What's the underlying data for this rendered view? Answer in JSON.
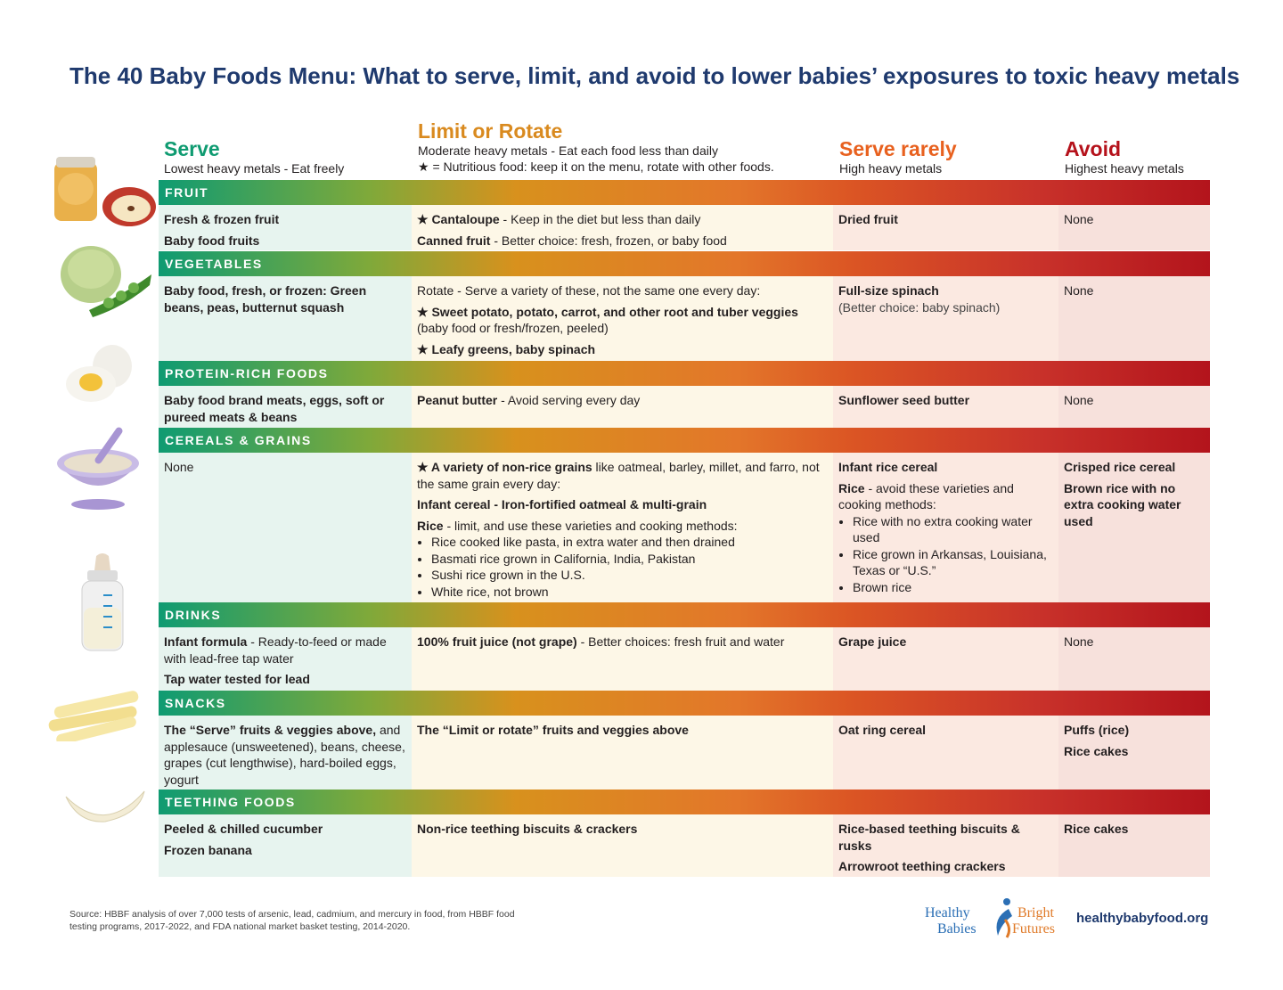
{
  "title": "The 40 Baby Foods Menu: What to serve, limit, and avoid to lower babies’ exposures to toxic heavy metals",
  "columns": {
    "serve": {
      "heading": "Serve",
      "sub": "Lowest heavy metals - Eat freely"
    },
    "limit": {
      "heading": "Limit or Rotate",
      "sub1": "Moderate heavy metals - Eat each food less than daily",
      "sub2": "★ = Nutritious food: keep it on the menu, rotate with other foods."
    },
    "rarely": {
      "heading": "Serve rarely",
      "sub": "High heavy metals"
    },
    "avoid": {
      "heading": "Avoid",
      "sub": "Highest heavy metals"
    }
  },
  "sections": {
    "fruit": {
      "label": "FRUIT",
      "serve": [
        "Fresh & frozen fruit",
        "Baby food fruits"
      ],
      "limit": [
        {
          "b": "★ Cantaloupe",
          "t": " - Keep in the diet but less than daily"
        },
        {
          "b": "Canned fruit",
          "t": " - Better choice: fresh, frozen, or baby food"
        }
      ],
      "rarely": [
        "Dried fruit"
      ],
      "avoid": [
        "None"
      ]
    },
    "vegetables": {
      "label": "VEGETABLES",
      "serve": [
        "Baby food, fresh, or frozen: Green beans, peas, butternut squash"
      ],
      "limit_intro": "Rotate - Serve a variety of these, not the same one every day:",
      "limit": [
        {
          "b": "★ Sweet potato, potato, carrot, and other root and tuber veggies",
          "t": " (baby food or fresh/frozen, peeled)"
        },
        {
          "b": "★ Leafy greens, baby spinach",
          "t": ""
        }
      ],
      "rarely_b": "Full-size spinach",
      "rarely_t": "(Better choice: baby spinach)",
      "avoid": [
        "None"
      ]
    },
    "protein": {
      "label": "PROTEIN-RICH FOODS",
      "serve": [
        "Baby food brand meats, eggs, soft or pureed meats & beans"
      ],
      "limit": [
        {
          "b": "Peanut butter",
          "t": " - Avoid serving every day"
        }
      ],
      "rarely": [
        "Sunflower seed butter"
      ],
      "avoid": [
        "None"
      ]
    },
    "cereals": {
      "label": "CEREALS & GRAINS",
      "serve": [
        "None"
      ],
      "limit_1b": "★ A variety of non-rice grains",
      "limit_1t": " like oatmeal, barley, millet, and farro, not the same grain every day:",
      "limit_2b": "Infant cereal - Iron-fortified oatmeal & multi-grain",
      "limit_3b": "Rice",
      "limit_3t": " - limit, and use these varieties and cooking methods:",
      "limit_list": [
        "Rice cooked like pasta, in extra water and then drained",
        "Basmati rice grown in California, India, Pakistan",
        "Sushi rice grown in the U.S.",
        "White rice, not brown"
      ],
      "rarely_1": "Infant rice cereal",
      "rarely_2b": "Rice",
      "rarely_2t": " - avoid these varieties and cooking methods:",
      "rarely_list": [
        "Rice with no extra cooking water used",
        "Rice grown in Arkansas, Louisiana, Texas or “U.S.”",
        "Brown rice"
      ],
      "avoid": [
        "Crisped rice cereal",
        "Brown rice with no extra cooking water used"
      ]
    },
    "drinks": {
      "label": "DRINKS",
      "serve_1b": "Infant formula",
      "serve_1t": " - Ready-to-feed or made with lead-free tap water",
      "serve_2b": "Tap water tested for lead",
      "limit_b": "100% fruit juice (not grape)",
      "limit_t": " - Better choices: fresh fruit and water",
      "rarely": [
        "Grape juice"
      ],
      "avoid": [
        "None"
      ]
    },
    "snacks": {
      "label": "SNACKS",
      "serve_b": "The “Serve” fruits & veggies above,",
      "serve_t": " and applesauce (unsweetened), beans, cheese, grapes (cut lengthwise), hard-boiled eggs, yogurt",
      "limit": [
        "The “Limit or rotate” fruits and veggies above"
      ],
      "rarely": [
        "Oat ring cereal"
      ],
      "avoid": [
        "Puffs (rice)",
        "Rice cakes"
      ]
    },
    "teething": {
      "label": "TEETHING FOODS",
      "serve": [
        "Peeled & chilled cucumber",
        "Frozen banana"
      ],
      "limit": [
        "Non-rice teething biscuits & crackers"
      ],
      "rarely": [
        "Rice-based teething biscuits & rusks",
        "Arrowroot teething crackers"
      ],
      "avoid": [
        "Rice cakes"
      ]
    }
  },
  "footer": {
    "source": "Source: HBBF analysis of over 7,000 tests of arsenic, lead, cadmium, and mercury in food, from HBBF food testing programs, 2017-2022, and FDA national market basket testing, 2014-2020.",
    "logo_1": "Healthy",
    "logo_2": "Babies",
    "logo_3": "Bright",
    "logo_4": "Futures",
    "site": "healthybabyfood.org"
  },
  "colors": {
    "serve": "#0f9b71",
    "limit": "#d98a1f",
    "rarely": "#e8611f",
    "avoid": "#b5121b",
    "title": "#1f3a6e"
  }
}
